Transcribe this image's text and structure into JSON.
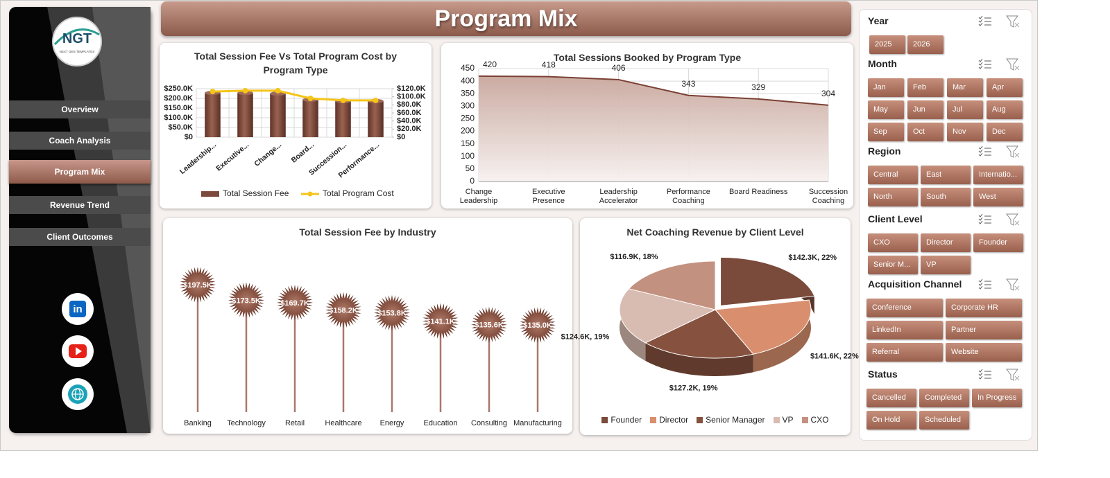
{
  "header": {
    "title": "Program Mix"
  },
  "logo": {
    "text": "NGT",
    "tagline": "NEXT GEN TEMPLATES"
  },
  "nav": [
    "Overview",
    "Coach Analysis",
    "Program Mix",
    "Revenue Trend",
    "Client Outcomes"
  ],
  "active_nav": "Program Mix",
  "social": {
    "linkedin": "in"
  },
  "slicers": [
    {
      "title": "Year",
      "items": [
        "2025",
        "2026"
      ]
    },
    {
      "title": "Month",
      "items": [
        "Jan",
        "Feb",
        "Mar",
        "Apr",
        "May",
        "Jun",
        "Jul",
        "Aug",
        "Sep",
        "Oct",
        "Nov",
        "Dec"
      ]
    },
    {
      "title": "Region",
      "items": [
        "Central",
        "East",
        "Internatio...",
        "North",
        "South",
        "West"
      ]
    },
    {
      "title": "Client Level",
      "items": [
        "CXO",
        "Director",
        "Founder",
        "Senior M...",
        "VP"
      ]
    },
    {
      "title": "Acquisition Channel",
      "items": [
        "Conference",
        "Corporate HR",
        "LinkedIn",
        "Partner",
        "Referral",
        "Website"
      ]
    },
    {
      "title": "Status",
      "items": [
        "Cancelled",
        "Completed",
        "In Progress",
        "On Hold",
        "Scheduled"
      ]
    }
  ],
  "chart_data": [
    {
      "type": "combo",
      "title": "Total Session Fee Vs Total Program Cost by Program Type",
      "categories": [
        "Leadership...",
        "Executive...",
        "Change...",
        "Board...",
        "Succession...",
        "Performance..."
      ],
      "series": [
        {
          "name": "Total Session Fee",
          "type": "bar",
          "color": "#7b4a3c",
          "values": [
            228000,
            228000,
            225000,
            193000,
            186000,
            186000
          ]
        },
        {
          "name": "Total Program Cost",
          "type": "line",
          "axis": "y2",
          "color": "#f5c518",
          "values": [
            113000,
            115000,
            115000,
            96000,
            91000,
            91000
          ]
        }
      ],
      "ylim": [
        0,
        250000
      ],
      "yticks": [
        {
          "value": 0,
          "label": "$0"
        },
        {
          "value": 50000,
          "label": "$50.0K"
        },
        {
          "value": 100000,
          "label": "$100.0K"
        },
        {
          "value": 150000,
          "label": "$150.0K"
        },
        {
          "value": 200000,
          "label": "$200.0K"
        },
        {
          "value": 250000,
          "label": "$250.0K"
        }
      ],
      "y2lim": [
        0,
        120000
      ],
      "y2ticks": [
        {
          "value": 0,
          "label": "$0"
        },
        {
          "value": 20000,
          "label": "$20.0K"
        },
        {
          "value": 40000,
          "label": "$40.0K"
        },
        {
          "value": 60000,
          "label": "$60.0K"
        },
        {
          "value": 80000,
          "label": "$80.0K"
        },
        {
          "value": 100000,
          "label": "$100.0K"
        },
        {
          "value": 120000,
          "label": "$120.0K"
        }
      ],
      "grid": true,
      "legend": "bottom"
    },
    {
      "type": "area",
      "title": "Total Sessions Booked by Program Type",
      "categories": [
        "Change Leadership",
        "Executive Presence",
        "Leadership Accelerator",
        "Performance Coaching",
        "Board Readiness",
        "Succession Coaching"
      ],
      "values": [
        420,
        418,
        406,
        343,
        329,
        304
      ],
      "color": "#7a4033",
      "ylim": [
        0,
        450
      ],
      "yticks": [
        0,
        50,
        100,
        150,
        200,
        250,
        300,
        350,
        400,
        450
      ],
      "grid": true,
      "data_labels": true
    },
    {
      "type": "lollipop",
      "title": "Total Session Fee by Industry",
      "categories": [
        "Banking",
        "Technology",
        "Retail",
        "Healthcare",
        "Energy",
        "Education",
        "Consulting",
        "Manufacturing"
      ],
      "values": [
        197.5,
        173.5,
        169.7,
        158.2,
        153.8,
        141.1,
        135.6,
        135.0
      ],
      "value_labels": [
        "$197.5K",
        "$173.5K",
        "$169.7K",
        "$158.2K",
        "$153.8K",
        "$141.1K",
        "$135.6K",
        "$135.0K"
      ],
      "color": "#8a5444"
    },
    {
      "type": "pie",
      "title": "Net Coaching Revenue by Client Level",
      "categories": [
        "Founder",
        "Director",
        "Senior Manager",
        "VP",
        "CXO"
      ],
      "values": [
        142.3,
        141.6,
        127.2,
        124.6,
        116.9
      ],
      "value_labels": [
        "$142.3K, 22%",
        "$141.6K, 22%",
        "$127.2K, 19%",
        "$124.6K, 19%",
        "$116.9K, 18%"
      ],
      "colors": [
        "#7a4a3a",
        "#d98f6e",
        "#86523f",
        "#d9bcb1",
        "#c3917f"
      ],
      "exploded_slice": "Founder",
      "legend": "bottom"
    }
  ]
}
